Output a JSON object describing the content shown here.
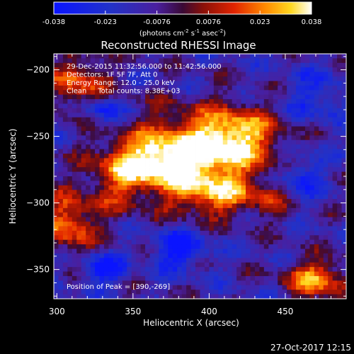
{
  "chart_data": {
    "type": "heatmap",
    "title": "Reconstructed RHESSI Image",
    "xlabel": "Heliocentric X (arcsec)",
    "ylabel": "Heliocentric Y (arcsec)",
    "xlim": [
      298,
      490
    ],
    "ylim": [
      -372,
      -188
    ],
    "x_ticks": [
      300,
      350,
      400,
      450
    ],
    "y_ticks": [
      -200,
      -250,
      -300,
      -350
    ],
    "colorbar": {
      "ticks": [
        "-0.038",
        "-0.023",
        "-0.0076",
        "0.0076",
        "0.023",
        "0.038"
      ],
      "range": [
        -0.038,
        0.038
      ],
      "unit_base": "(photons cm",
      "unit_e1": "-2",
      "unit_mid": " s",
      "unit_e2": "-1",
      "unit_tail": " asec",
      "unit_e3": "-2",
      "unit_close": ")",
      "colormap": "rainbow-like: blue, purple, red, orange, yellow, white"
    },
    "annotations": [
      "29-Dec-2015 11:32:56.000 to 11:42:56.000",
      "Detectors: 1F 5F 7F, Att 0",
      "Energy Range: 12.0 - 25.0 keV",
      "Clean     Total counts: 8.38E+03"
    ],
    "peak_label": "Position of Peak = [390,-269]",
    "peak": [
      390,
      -269
    ],
    "sources": [
      {
        "x": 390,
        "y": -265,
        "sx": 30,
        "sy": 22,
        "amp": 0.048
      },
      {
        "x": 358,
        "y": -270,
        "sx": 22,
        "sy": 12,
        "amp": 0.03
      },
      {
        "x": 420,
        "y": -248,
        "sx": 18,
        "sy": 14,
        "amp": 0.03
      },
      {
        "x": 405,
        "y": -295,
        "sx": 20,
        "sy": 10,
        "amp": 0.025
      },
      {
        "x": 440,
        "y": -300,
        "sx": 10,
        "sy": 10,
        "amp": 0.012
      },
      {
        "x": 340,
        "y": -290,
        "sx": 12,
        "sy": 14,
        "amp": 0.016
      },
      {
        "x": 315,
        "y": -210,
        "sx": 14,
        "sy": 14,
        "amp": 0.03
      },
      {
        "x": 308,
        "y": -315,
        "sx": 12,
        "sy": 16,
        "amp": 0.034
      },
      {
        "x": 470,
        "y": -357,
        "sx": 14,
        "sy": 10,
        "amp": 0.038
      },
      {
        "x": 330,
        "y": -350,
        "sx": 10,
        "sy": 8,
        "amp": -0.028
      },
      {
        "x": 380,
        "y": -335,
        "sx": 12,
        "sy": 10,
        "amp": -0.03
      },
      {
        "x": 330,
        "y": -230,
        "sx": 8,
        "sy": 8,
        "amp": -0.026
      },
      {
        "x": 460,
        "y": -280,
        "sx": 10,
        "sy": 12,
        "amp": -0.022
      },
      {
        "x": 470,
        "y": -220,
        "sx": 14,
        "sy": 14,
        "amp": -0.016
      }
    ]
  },
  "footer": {
    "timestamp": "27-Oct-2017 12:15"
  }
}
